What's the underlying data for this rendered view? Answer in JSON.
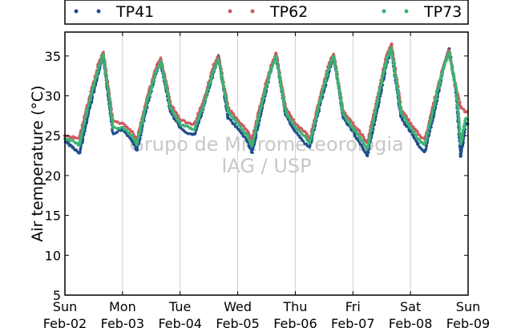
{
  "chart_data": {
    "type": "scatter",
    "ylabel": "Air temperature (°C)",
    "ylim": [
      5,
      38
    ],
    "yticks": [
      5,
      10,
      15,
      20,
      25,
      30,
      35
    ],
    "xlim": [
      "2016-02-02",
      "2016-02-09"
    ],
    "xticks": [
      {
        "date": "2016-02-02",
        "day": "Sun",
        "label": "Feb-02"
      },
      {
        "date": "2016-02-03",
        "day": "Mon",
        "label": "Feb-03"
      },
      {
        "date": "2016-02-04",
        "day": "Tue",
        "label": "Feb-04"
      },
      {
        "date": "2016-02-05",
        "day": "Wed",
        "label": "Feb-05"
      },
      {
        "date": "2016-02-06",
        "day": "Thu",
        "label": "Feb-06"
      },
      {
        "date": "2016-02-07",
        "day": "Fri",
        "label": "Feb-07"
      },
      {
        "date": "2016-02-08",
        "day": "Sat",
        "label": "Feb-08"
      },
      {
        "date": "2016-02-09",
        "day": "Sun",
        "label": "Feb-09"
      }
    ],
    "grid": "vertical",
    "legend_position": "top",
    "series": [
      {
        "name": "TP41",
        "color": "#1f4e8c",
        "points": [
          [
            "2016-02-02 00:00",
            24.3
          ],
          [
            "2016-02-02 04:00",
            23.4
          ],
          [
            "2016-02-02 06:00",
            22.7
          ],
          [
            "2016-02-02 10:00",
            28.0
          ],
          [
            "2016-02-02 14:00",
            33.0
          ],
          [
            "2016-02-02 16:00",
            35.0
          ],
          [
            "2016-02-02 20:00",
            25.3
          ],
          [
            "2016-02-03 00:00",
            25.8
          ],
          [
            "2016-02-03 04:00",
            24.4
          ],
          [
            "2016-02-03 06:00",
            23.1
          ],
          [
            "2016-02-03 10:00",
            28.5
          ],
          [
            "2016-02-03 14:00",
            33.0
          ],
          [
            "2016-02-03 16:00",
            34.1
          ],
          [
            "2016-02-03 20:00",
            28.0
          ],
          [
            "2016-02-04 00:00",
            26.0
          ],
          [
            "2016-02-04 04:00",
            25.2
          ],
          [
            "2016-02-04 06:00",
            25.1
          ],
          [
            "2016-02-04 10:00",
            28.8
          ],
          [
            "2016-02-04 14:00",
            33.0
          ],
          [
            "2016-02-04 16:00",
            35.0
          ],
          [
            "2016-02-04 20:00",
            27.2
          ],
          [
            "2016-02-05 00:00",
            25.9
          ],
          [
            "2016-02-05 04:00",
            24.3
          ],
          [
            "2016-02-05 06:00",
            22.8
          ],
          [
            "2016-02-05 10:00",
            28.3
          ],
          [
            "2016-02-05 14:00",
            33.5
          ],
          [
            "2016-02-05 16:00",
            35.0
          ],
          [
            "2016-02-05 20:00",
            27.6
          ],
          [
            "2016-02-06 00:00",
            25.5
          ],
          [
            "2016-02-06 04:00",
            24.0
          ],
          [
            "2016-02-06 06:00",
            23.5
          ],
          [
            "2016-02-06 10:00",
            28.5
          ],
          [
            "2016-02-06 14:00",
            33.0
          ],
          [
            "2016-02-06 16:00",
            35.0
          ],
          [
            "2016-02-06 20:00",
            27.3
          ],
          [
            "2016-02-07 00:00",
            25.5
          ],
          [
            "2016-02-07 04:00",
            23.5
          ],
          [
            "2016-02-07 06:00",
            22.5
          ],
          [
            "2016-02-07 10:00",
            28.0
          ],
          [
            "2016-02-07 14:00",
            34.0
          ],
          [
            "2016-02-07 16:00",
            35.8
          ],
          [
            "2016-02-07 20:00",
            27.3
          ],
          [
            "2016-02-08 00:00",
            25.5
          ],
          [
            "2016-02-08 04:00",
            23.5
          ],
          [
            "2016-02-08 06:00",
            23.0
          ],
          [
            "2016-02-08 10:00",
            28.0
          ],
          [
            "2016-02-08 14:00",
            33.8
          ],
          [
            "2016-02-08 16:00",
            36.0
          ],
          [
            "2016-02-08 19:00",
            30.5
          ],
          [
            "2016-02-08 21:00",
            22.3
          ],
          [
            "2016-02-08 23:00",
            26.5
          ],
          [
            "2016-02-09 00:00",
            26.5
          ]
        ]
      },
      {
        "name": "TP62",
        "color": "#cc5a63",
        "points": [
          [
            "2016-02-02 00:00",
            25.0
          ],
          [
            "2016-02-02 04:00",
            24.8
          ],
          [
            "2016-02-02 06:00",
            24.7
          ],
          [
            "2016-02-02 10:00",
            29.5
          ],
          [
            "2016-02-02 14:00",
            34.0
          ],
          [
            "2016-02-02 16:00",
            35.5
          ],
          [
            "2016-02-02 20:00",
            26.8
          ],
          [
            "2016-02-03 00:00",
            26.5
          ],
          [
            "2016-02-03 04:00",
            25.5
          ],
          [
            "2016-02-03 06:00",
            24.5
          ],
          [
            "2016-02-03 10:00",
            29.5
          ],
          [
            "2016-02-03 14:00",
            33.5
          ],
          [
            "2016-02-03 16:00",
            34.7
          ],
          [
            "2016-02-03 20:00",
            29.0
          ],
          [
            "2016-02-04 00:00",
            27.0
          ],
          [
            "2016-02-04 04:00",
            26.5
          ],
          [
            "2016-02-04 06:00",
            26.5
          ],
          [
            "2016-02-04 10:00",
            29.5
          ],
          [
            "2016-02-04 14:00",
            33.8
          ],
          [
            "2016-02-04 16:00",
            35.0
          ],
          [
            "2016-02-04 20:00",
            28.5
          ],
          [
            "2016-02-05 00:00",
            27.0
          ],
          [
            "2016-02-05 04:00",
            25.5
          ],
          [
            "2016-02-05 06:00",
            24.5
          ],
          [
            "2016-02-05 10:00",
            29.5
          ],
          [
            "2016-02-05 14:00",
            34.0
          ],
          [
            "2016-02-05 16:00",
            35.3
          ],
          [
            "2016-02-05 20:00",
            28.5
          ],
          [
            "2016-02-06 00:00",
            26.5
          ],
          [
            "2016-02-06 04:00",
            25.5
          ],
          [
            "2016-02-06 06:00",
            24.5
          ],
          [
            "2016-02-06 10:00",
            29.5
          ],
          [
            "2016-02-06 14:00",
            34.0
          ],
          [
            "2016-02-06 16:00",
            35.3
          ],
          [
            "2016-02-06 20:00",
            28.0
          ],
          [
            "2016-02-07 00:00",
            26.5
          ],
          [
            "2016-02-07 04:00",
            25.0
          ],
          [
            "2016-02-07 06:00",
            24.0
          ],
          [
            "2016-02-07 10:00",
            29.5
          ],
          [
            "2016-02-07 14:00",
            35.0
          ],
          [
            "2016-02-07 16:00",
            36.5
          ],
          [
            "2016-02-07 20:00",
            28.5
          ],
          [
            "2016-02-08 00:00",
            26.5
          ],
          [
            "2016-02-08 04:00",
            25.0
          ],
          [
            "2016-02-08 06:00",
            24.5
          ],
          [
            "2016-02-08 10:00",
            29.5
          ],
          [
            "2016-02-08 14:00",
            34.0
          ],
          [
            "2016-02-08 16:00",
            35.8
          ],
          [
            "2016-02-08 19:00",
            31.0
          ],
          [
            "2016-02-08 21:00",
            28.5
          ],
          [
            "2016-02-08 23:00",
            28.0
          ],
          [
            "2016-02-09 00:00",
            28.0
          ]
        ]
      },
      {
        "name": "TP73",
        "color": "#3cb371",
        "points": [
          [
            "2016-02-02 00:00",
            24.7
          ],
          [
            "2016-02-02 04:00",
            24.2
          ],
          [
            "2016-02-02 06:00",
            23.8
          ],
          [
            "2016-02-02 10:00",
            29.0
          ],
          [
            "2016-02-02 14:00",
            33.5
          ],
          [
            "2016-02-02 16:00",
            35.2
          ],
          [
            "2016-02-02 20:00",
            26.0
          ],
          [
            "2016-02-03 00:00",
            26.0
          ],
          [
            "2016-02-03 04:00",
            25.0
          ],
          [
            "2016-02-03 06:00",
            23.8
          ],
          [
            "2016-02-03 10:00",
            29.0
          ],
          [
            "2016-02-03 14:00",
            33.0
          ],
          [
            "2016-02-03 16:00",
            34.3
          ],
          [
            "2016-02-03 20:00",
            28.5
          ],
          [
            "2016-02-04 00:00",
            26.5
          ],
          [
            "2016-02-04 04:00",
            26.0
          ],
          [
            "2016-02-04 06:00",
            25.8
          ],
          [
            "2016-02-04 10:00",
            29.0
          ],
          [
            "2016-02-04 14:00",
            33.3
          ],
          [
            "2016-02-04 16:00",
            34.7
          ],
          [
            "2016-02-04 20:00",
            28.0
          ],
          [
            "2016-02-05 00:00",
            26.5
          ],
          [
            "2016-02-05 04:00",
            25.0
          ],
          [
            "2016-02-05 06:00",
            23.8
          ],
          [
            "2016-02-05 10:00",
            29.0
          ],
          [
            "2016-02-05 14:00",
            33.5
          ],
          [
            "2016-02-05 16:00",
            35.0
          ],
          [
            "2016-02-05 20:00",
            28.0
          ],
          [
            "2016-02-06 00:00",
            26.0
          ],
          [
            "2016-02-06 04:00",
            25.0
          ],
          [
            "2016-02-06 06:00",
            24.0
          ],
          [
            "2016-02-06 10:00",
            29.0
          ],
          [
            "2016-02-06 14:00",
            33.5
          ],
          [
            "2016-02-06 16:00",
            35.0
          ],
          [
            "2016-02-06 20:00",
            27.7
          ],
          [
            "2016-02-07 00:00",
            26.0
          ],
          [
            "2016-02-07 04:00",
            24.3
          ],
          [
            "2016-02-07 06:00",
            23.3
          ],
          [
            "2016-02-07 10:00",
            29.0
          ],
          [
            "2016-02-07 14:00",
            34.5
          ],
          [
            "2016-02-07 16:00",
            36.0
          ],
          [
            "2016-02-07 20:00",
            28.0
          ],
          [
            "2016-02-08 00:00",
            26.0
          ],
          [
            "2016-02-08 04:00",
            24.3
          ],
          [
            "2016-02-08 06:00",
            23.8
          ],
          [
            "2016-02-08 10:00",
            29.0
          ],
          [
            "2016-02-08 14:00",
            33.8
          ],
          [
            "2016-02-08 16:00",
            35.5
          ],
          [
            "2016-02-08 19:00",
            31.0
          ],
          [
            "2016-02-08 21:00",
            24.0
          ],
          [
            "2016-02-08 23:00",
            27.2
          ],
          [
            "2016-02-09 00:00",
            27.0
          ]
        ]
      }
    ],
    "watermark": [
      "Grupo de Micrometeorologia",
      "IAG / USP"
    ]
  }
}
